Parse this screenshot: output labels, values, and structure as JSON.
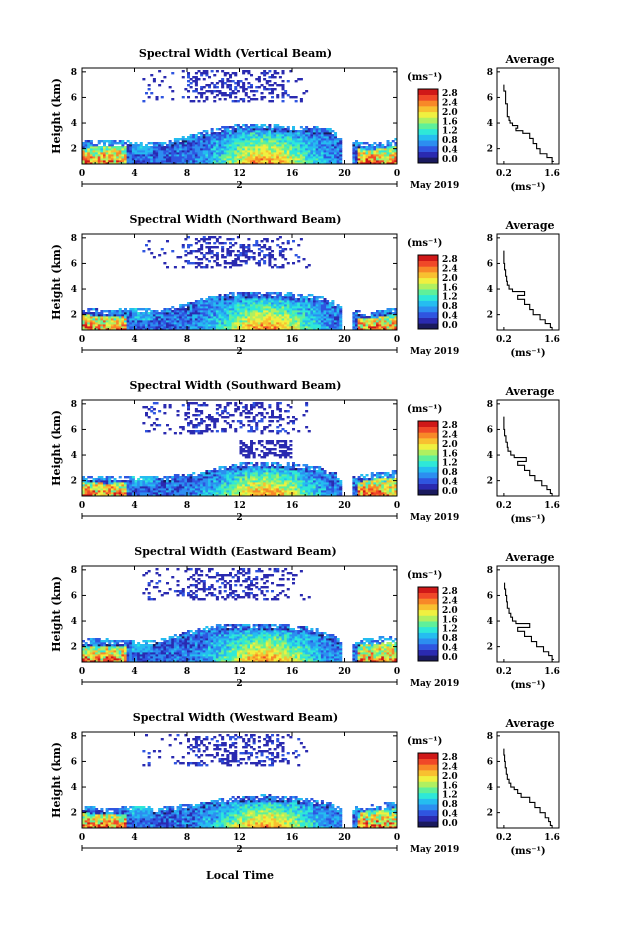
{
  "figure": {
    "xlabel": "Local Time",
    "date_label": "May 2019",
    "day_label": "2",
    "units_label": "(ms⁻¹)",
    "avg_title": "Average",
    "avg_xlabel": "(ms⁻¹)"
  },
  "colorbar": {
    "ticks": [
      "2.8",
      "2.4",
      "2.0",
      "1.6",
      "1.2",
      "0.8",
      "0.4",
      "0.0"
    ],
    "colors": [
      "#1a1a5e",
      "#2a2ab0",
      "#2f55e0",
      "#2c8ef0",
      "#25bdf0",
      "#2ee8d8",
      "#5ff09a",
      "#b0f060",
      "#f0f040",
      "#f8c030",
      "#f88828",
      "#f04828",
      "#d01818"
    ]
  },
  "chart_data": [
    {
      "type": "heatmap",
      "title": "Spectral Width (Vertical Beam)",
      "xlabel": "Local Time",
      "ylabel": "Height (km)",
      "x_ticks": [
        "0",
        "4",
        "8",
        "12",
        "16",
        "20",
        "0"
      ],
      "y_ticks": [
        "2",
        "4",
        "6",
        "8"
      ],
      "xlim": [
        0,
        24
      ],
      "ylim": [
        0.8,
        8.3
      ],
      "colorbar_range": [
        0.0,
        2.8
      ],
      "boundary_layer_top_km": [
        2.6,
        2.7,
        2.6,
        2.5,
        3.0,
        3.6,
        3.9,
        3.9,
        3.8,
        3.7,
        3.6,
        2.8,
        2.4,
        2.8
      ],
      "boundary_layer_hours": [
        0,
        2,
        4,
        6,
        8,
        10,
        12,
        14,
        16,
        18,
        19,
        20,
        22,
        24
      ],
      "average_profile": {
        "title": "Average",
        "xlabel": "(ms⁻¹)",
        "x_ticks": [
          "0.2",
          "1.6"
        ],
        "y_ticks": [
          "2",
          "4",
          "6",
          "8"
        ],
        "xlim": [
          0.0,
          1.8
        ],
        "height_km": [
          1.0,
          1.3,
          1.6,
          2.0,
          2.4,
          2.8,
          3.2,
          3.4,
          3.6,
          3.8,
          4.0,
          4.2,
          4.5,
          5.0,
          5.5,
          6.0,
          6.5,
          7.0
        ],
        "width_ms": [
          1.65,
          1.6,
          1.45,
          1.25,
          1.15,
          1.05,
          0.95,
          0.75,
          0.55,
          0.6,
          0.45,
          0.38,
          0.35,
          0.3,
          0.3,
          0.25,
          0.25,
          0.2
        ]
      }
    },
    {
      "type": "heatmap",
      "title": "Spectral Width (Northward Beam)",
      "xlabel": "Local Time",
      "ylabel": "Height (km)",
      "x_ticks": [
        "0",
        "4",
        "8",
        "12",
        "16",
        "20",
        "0"
      ],
      "y_ticks": [
        "2",
        "4",
        "6",
        "8"
      ],
      "xlim": [
        0,
        24
      ],
      "ylim": [
        0.8,
        8.3
      ],
      "colorbar_range": [
        0.0,
        2.8
      ],
      "boundary_layer_top_km": [
        2.5,
        2.4,
        2.5,
        2.4,
        2.9,
        3.5,
        3.8,
        3.8,
        3.7,
        3.5,
        3.2,
        2.4,
        2.2,
        2.6
      ],
      "boundary_layer_hours": [
        0,
        2,
        4,
        6,
        8,
        10,
        12,
        14,
        16,
        18,
        19,
        20,
        22,
        24
      ],
      "average_profile": {
        "title": "Average",
        "xlabel": "(ms⁻¹)",
        "x_ticks": [
          "0.2",
          "1.6"
        ],
        "y_ticks": [
          "2",
          "4",
          "6",
          "8"
        ],
        "xlim": [
          0.0,
          1.8
        ],
        "height_km": [
          1.0,
          1.3,
          1.6,
          2.0,
          2.4,
          2.8,
          3.2,
          3.5,
          3.8,
          4.0,
          4.3,
          4.6,
          5.0,
          5.5,
          6.0,
          6.5,
          7.0
        ],
        "width_ms": [
          1.6,
          1.55,
          1.4,
          1.25,
          1.05,
          0.95,
          0.8,
          0.6,
          0.8,
          0.45,
          0.35,
          0.3,
          0.28,
          0.25,
          0.22,
          0.2,
          0.2
        ]
      }
    },
    {
      "type": "heatmap",
      "title": "Spectral Width (Southward Beam)",
      "xlabel": "Local Time",
      "ylabel": "Height (km)",
      "x_ticks": [
        "0",
        "4",
        "8",
        "12",
        "16",
        "20",
        "0"
      ],
      "y_ticks": [
        "2",
        "4",
        "6",
        "8"
      ],
      "xlim": [
        0,
        24
      ],
      "ylim": [
        0.8,
        8.3
      ],
      "colorbar_range": [
        0.0,
        2.8
      ],
      "boundary_layer_top_km": [
        2.4,
        2.3,
        2.4,
        2.3,
        2.6,
        3.0,
        3.4,
        3.5,
        3.4,
        3.1,
        2.8,
        2.2,
        2.6,
        2.8
      ],
      "boundary_layer_hours": [
        0,
        2,
        4,
        6,
        8,
        10,
        12,
        14,
        16,
        18,
        19,
        20,
        22,
        24
      ],
      "average_profile": {
        "title": "Average",
        "xlabel": "(ms⁻¹)",
        "x_ticks": [
          "0.2",
          "1.6"
        ],
        "y_ticks": [
          "2",
          "4",
          "6",
          "8"
        ],
        "xlim": [
          0.0,
          1.8
        ],
        "height_km": [
          1.0,
          1.3,
          1.6,
          2.0,
          2.4,
          2.8,
          3.2,
          3.5,
          3.8,
          4.0,
          4.3,
          4.6,
          5.0,
          5.5,
          6.0,
          6.5,
          7.0
        ],
        "width_ms": [
          1.6,
          1.55,
          1.45,
          1.3,
          1.1,
          0.95,
          0.8,
          0.6,
          0.85,
          0.5,
          0.4,
          0.32,
          0.3,
          0.26,
          0.22,
          0.2,
          0.2
        ]
      }
    },
    {
      "type": "heatmap",
      "title": "Spectral Width (Eastward Beam)",
      "xlabel": "Local Time",
      "ylabel": "Height (km)",
      "x_ticks": [
        "0",
        "4",
        "8",
        "12",
        "16",
        "20",
        "0"
      ],
      "y_ticks": [
        "2",
        "4",
        "6",
        "8"
      ],
      "xlim": [
        0,
        24
      ],
      "ylim": [
        0.8,
        8.3
      ],
      "colorbar_range": [
        0.0,
        2.8
      ],
      "boundary_layer_top_km": [
        2.6,
        2.6,
        2.5,
        2.6,
        3.2,
        3.7,
        3.8,
        3.8,
        3.7,
        3.4,
        3.0,
        2.5,
        2.7,
        2.9
      ],
      "boundary_layer_hours": [
        0,
        2,
        4,
        6,
        8,
        10,
        12,
        14,
        16,
        18,
        19,
        20,
        22,
        24
      ],
      "average_profile": {
        "title": "Average",
        "xlabel": "(ms⁻¹)",
        "x_ticks": [
          "0.2",
          "1.6"
        ],
        "y_ticks": [
          "2",
          "4",
          "6",
          "8"
        ],
        "xlim": [
          0.0,
          1.8
        ],
        "height_km": [
          1.0,
          1.3,
          1.6,
          2.0,
          2.4,
          2.8,
          3.2,
          3.5,
          3.8,
          4.0,
          4.3,
          4.6,
          5.0,
          5.5,
          6.0,
          6.5,
          7.0
        ],
        "width_ms": [
          1.65,
          1.6,
          1.5,
          1.35,
          1.15,
          1.0,
          0.8,
          0.6,
          0.95,
          0.55,
          0.45,
          0.4,
          0.35,
          0.3,
          0.28,
          0.25,
          0.22
        ]
      }
    },
    {
      "type": "heatmap",
      "title": "Spectral Width (Westward Beam)",
      "xlabel": "Local Time",
      "ylabel": "Height (km)",
      "x_ticks": [
        "0",
        "4",
        "8",
        "12",
        "16",
        "20",
        "0"
      ],
      "y_ticks": [
        "2",
        "4",
        "6",
        "8"
      ],
      "xlim": [
        0,
        24
      ],
      "ylim": [
        0.8,
        8.3
      ],
      "colorbar_range": [
        0.0,
        2.8
      ],
      "boundary_layer_top_km": [
        2.5,
        2.4,
        2.5,
        2.4,
        2.7,
        3.0,
        3.3,
        3.4,
        3.3,
        3.0,
        2.8,
        2.3,
        2.7,
        2.8
      ],
      "boundary_layer_hours": [
        0,
        2,
        4,
        6,
        8,
        10,
        12,
        14,
        16,
        18,
        19,
        20,
        22,
        24
      ],
      "average_profile": {
        "title": "Average",
        "xlabel": "(ms⁻¹)",
        "x_ticks": [
          "0.2",
          "1.6"
        ],
        "y_ticks": [
          "2",
          "4",
          "6",
          "8"
        ],
        "xlim": [
          0.0,
          1.8
        ],
        "height_km": [
          1.0,
          1.3,
          1.6,
          2.0,
          2.4,
          2.8,
          3.2,
          3.5,
          3.8,
          4.0,
          4.3,
          4.6,
          5.0,
          5.5,
          6.0,
          6.5,
          7.0
        ],
        "width_ms": [
          1.6,
          1.55,
          1.5,
          1.4,
          1.25,
          1.1,
          0.95,
          0.7,
          0.6,
          0.5,
          0.4,
          0.35,
          0.3,
          0.27,
          0.24,
          0.22,
          0.2
        ]
      }
    }
  ]
}
